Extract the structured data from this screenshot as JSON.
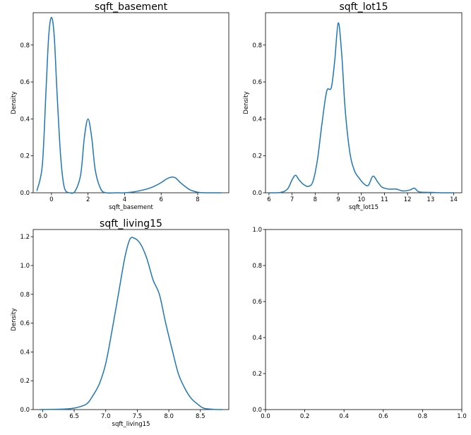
{
  "chart_data": [
    {
      "type": "line",
      "title": "sqft_basement",
      "xlabel": "sqft_basement",
      "ylabel": "Density",
      "xlim": [
        -1.0,
        9.7
      ],
      "ylim": [
        0,
        0.975
      ],
      "xticks": [
        0,
        2,
        4,
        6,
        8
      ],
      "xticklabels": [
        "0",
        "2",
        "4",
        "6",
        "8"
      ],
      "yticks": [
        0,
        0.2,
        0.4,
        0.6,
        0.8
      ],
      "yticklabels": [
        "0.0",
        "0.2",
        "0.4",
        "0.6",
        "0.8"
      ],
      "series": [
        {
          "x": [
            -0.8,
            -0.5,
            -0.3,
            -0.15,
            0,
            0.15,
            0.3,
            0.5,
            0.7,
            1.0,
            1.3,
            1.6,
            1.8,
            2.0,
            2.2,
            2.4,
            2.7,
            3.0,
            3.5,
            4.0,
            4.5,
            5.0,
            5.5,
            6.0,
            6.3,
            6.6,
            6.8,
            7.0,
            7.3,
            7.6,
            8.0,
            8.5,
            9.3
          ],
          "y": [
            0.01,
            0.15,
            0.55,
            0.85,
            0.95,
            0.85,
            0.55,
            0.2,
            0.03,
            0.0,
            0.01,
            0.1,
            0.3,
            0.4,
            0.3,
            0.12,
            0.02,
            0.0,
            0.0,
            0.0,
            0.005,
            0.015,
            0.03,
            0.055,
            0.075,
            0.085,
            0.08,
            0.06,
            0.035,
            0.015,
            0.003,
            0.0,
            0.0
          ]
        }
      ]
    },
    {
      "type": "line",
      "title": "sqft_lot15",
      "xlabel": "sqft_lot15",
      "ylabel": "Density",
      "xlim": [
        5.85,
        14.35
      ],
      "ylim": [
        0,
        0.975
      ],
      "xticks": [
        6,
        7,
        8,
        9,
        10,
        11,
        12,
        13,
        14
      ],
      "xticklabels": [
        "6",
        "7",
        "8",
        "9",
        "10",
        "11",
        "12",
        "13",
        "14"
      ],
      "yticks": [
        0,
        0.2,
        0.4,
        0.6,
        0.8
      ],
      "yticklabels": [
        "0.0",
        "0.2",
        "0.4",
        "0.6",
        "0.8"
      ],
      "series": [
        {
          "x": [
            6.0,
            6.5,
            6.8,
            7.0,
            7.15,
            7.3,
            7.5,
            7.7,
            7.9,
            8.1,
            8.3,
            8.5,
            8.7,
            8.85,
            9.0,
            9.15,
            9.3,
            9.5,
            9.7,
            9.9,
            10.1,
            10.3,
            10.5,
            10.7,
            10.9,
            11.2,
            11.5,
            11.8,
            12.1,
            12.3,
            12.5,
            13.0,
            13.5,
            14.0
          ],
          "y": [
            0.0,
            0.002,
            0.02,
            0.07,
            0.095,
            0.07,
            0.045,
            0.035,
            0.06,
            0.18,
            0.38,
            0.55,
            0.57,
            0.72,
            0.92,
            0.75,
            0.45,
            0.22,
            0.12,
            0.08,
            0.05,
            0.04,
            0.09,
            0.06,
            0.03,
            0.02,
            0.02,
            0.01,
            0.015,
            0.025,
            0.005,
            0.002,
            0.0,
            0.0
          ]
        }
      ]
    },
    {
      "type": "line",
      "title": "sqft_living15",
      "xlabel": "sqft_living15",
      "ylabel": "Density",
      "xlim": [
        5.85,
        8.95
      ],
      "ylim": [
        0,
        1.25
      ],
      "xticks": [
        6.0,
        6.5,
        7.0,
        7.5,
        8.0,
        8.5
      ],
      "xticklabels": [
        "6.0",
        "6.5",
        "7.0",
        "7.5",
        "8.0",
        "8.5"
      ],
      "yticks": [
        0,
        0.2,
        0.4,
        0.6,
        0.8,
        1.0,
        1.2
      ],
      "yticklabels": [
        "0.0",
        "0.2",
        "0.4",
        "0.6",
        "0.8",
        "1.0",
        "1.2"
      ],
      "series": [
        {
          "x": [
            5.95,
            6.2,
            6.4,
            6.55,
            6.7,
            6.8,
            6.9,
            7.0,
            7.1,
            7.2,
            7.3,
            7.38,
            7.45,
            7.55,
            7.65,
            7.75,
            7.85,
            7.95,
            8.05,
            8.15,
            8.25,
            8.35,
            8.45,
            8.55,
            8.7,
            8.85
          ],
          "y": [
            0.0,
            0.002,
            0.005,
            0.015,
            0.04,
            0.1,
            0.18,
            0.32,
            0.55,
            0.8,
            1.05,
            1.18,
            1.19,
            1.15,
            1.05,
            0.9,
            0.8,
            0.6,
            0.42,
            0.25,
            0.15,
            0.08,
            0.04,
            0.01,
            0.002,
            0.0
          ]
        }
      ]
    },
    {
      "type": "line",
      "title": "",
      "xlabel": "",
      "ylabel": "",
      "xlim": [
        0,
        1
      ],
      "ylim": [
        0,
        1
      ],
      "xticks": [
        0,
        0.2,
        0.4,
        0.6,
        0.8,
        1.0
      ],
      "xticklabels": [
        "0.0",
        "0.2",
        "0.4",
        "0.6",
        "0.8",
        "1.0"
      ],
      "yticks": [
        0,
        0.2,
        0.4,
        0.6,
        0.8,
        1.0
      ],
      "yticklabels": [
        "0.0",
        "0.2",
        "0.4",
        "0.6",
        "0.8",
        "1.0"
      ],
      "series": []
    }
  ],
  "colors": {
    "line": "#1f77b4"
  }
}
